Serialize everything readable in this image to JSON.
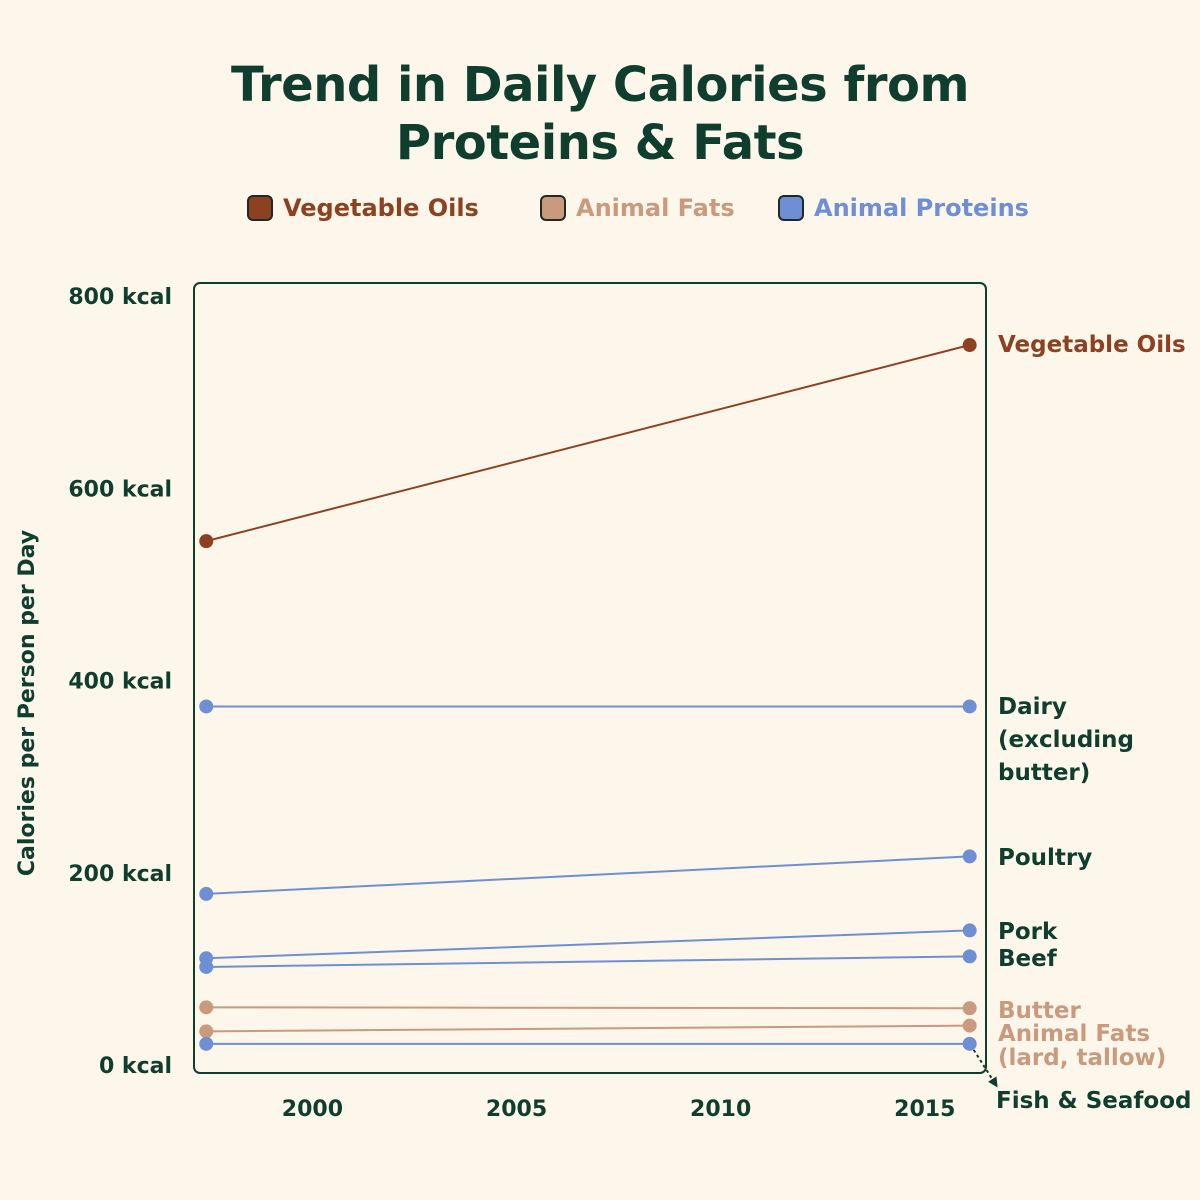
{
  "title_line1": "Trend in Daily Calories from",
  "title_line2": "Proteins & Fats",
  "legend": [
    {
      "label": "Vegetable Oils",
      "color": "#8c4220"
    },
    {
      "label": "Animal Fats",
      "color": "#c99a7d"
    },
    {
      "label": "Animal Proteins",
      "color": "#6f8fd4"
    }
  ],
  "colors": {
    "text": "#0f3d2e",
    "background": "#fdf6ea",
    "frame": "#0f3d2e"
  },
  "chart_data": {
    "type": "line",
    "title": "Trend in Daily Calories from Proteins & Fats",
    "ylabel": "Calories per Person per Day",
    "xlabel": "",
    "ylim": [
      0,
      800
    ],
    "xlim": [
      1997.1,
      2016.5
    ],
    "y_ticks": [
      0,
      200,
      400,
      600,
      800
    ],
    "y_tick_labels": [
      "0 kcal",
      "200 kcal",
      "400 kcal",
      "600 kcal",
      "800 kcal"
    ],
    "x_ticks": [
      2000,
      2005,
      2010,
      2015
    ],
    "x_tick_labels": [
      "2000",
      "2005",
      "2010",
      "2015"
    ],
    "grid": false,
    "legend_position": "top",
    "series": [
      {
        "name": "Vegetable Oils",
        "group": "Vegetable Oils",
        "x": [
          1997.4,
          2016.1
        ],
        "values": [
          545,
          749
        ],
        "label_lines": [
          "Vegetable Oils"
        ]
      },
      {
        "name": "Dairy (excluding butter)",
        "group": "Animal Proteins",
        "x": [
          1997.4,
          2016.1
        ],
        "values": [
          373,
          373
        ],
        "label_lines": [
          "Dairy",
          "(excluding",
          "butter)"
        ]
      },
      {
        "name": "Poultry",
        "group": "Animal Proteins",
        "x": [
          1997.4,
          2016.1
        ],
        "values": [
          178,
          217
        ],
        "label_lines": [
          "Poultry"
        ]
      },
      {
        "name": "Pork",
        "group": "Animal Proteins",
        "x": [
          1997.4,
          2016.1
        ],
        "values": [
          111,
          140
        ],
        "label_lines": [
          "Pork"
        ]
      },
      {
        "name": "Beef",
        "group": "Animal Proteins",
        "x": [
          1997.4,
          2016.1
        ],
        "values": [
          102,
          113
        ],
        "label_lines": [
          "Beef"
        ]
      },
      {
        "name": "Butter",
        "group": "Animal Fats",
        "x": [
          1997.4,
          2016.1
        ],
        "values": [
          60,
          59
        ],
        "label_lines": [
          "Butter"
        ]
      },
      {
        "name": "Animal Fats (lard, tallow)",
        "group": "Animal Fats",
        "x": [
          1997.4,
          2016.1
        ],
        "values": [
          35,
          41
        ],
        "label_lines": [
          "Animal Fats",
          "(lard, tallow)"
        ]
      },
      {
        "name": "Fish & Seafood",
        "group": "Animal Proteins",
        "x": [
          1997.4,
          2016.1
        ],
        "values": [
          22,
          22
        ],
        "label_lines": [
          "Fish & Seafood"
        ]
      }
    ]
  }
}
